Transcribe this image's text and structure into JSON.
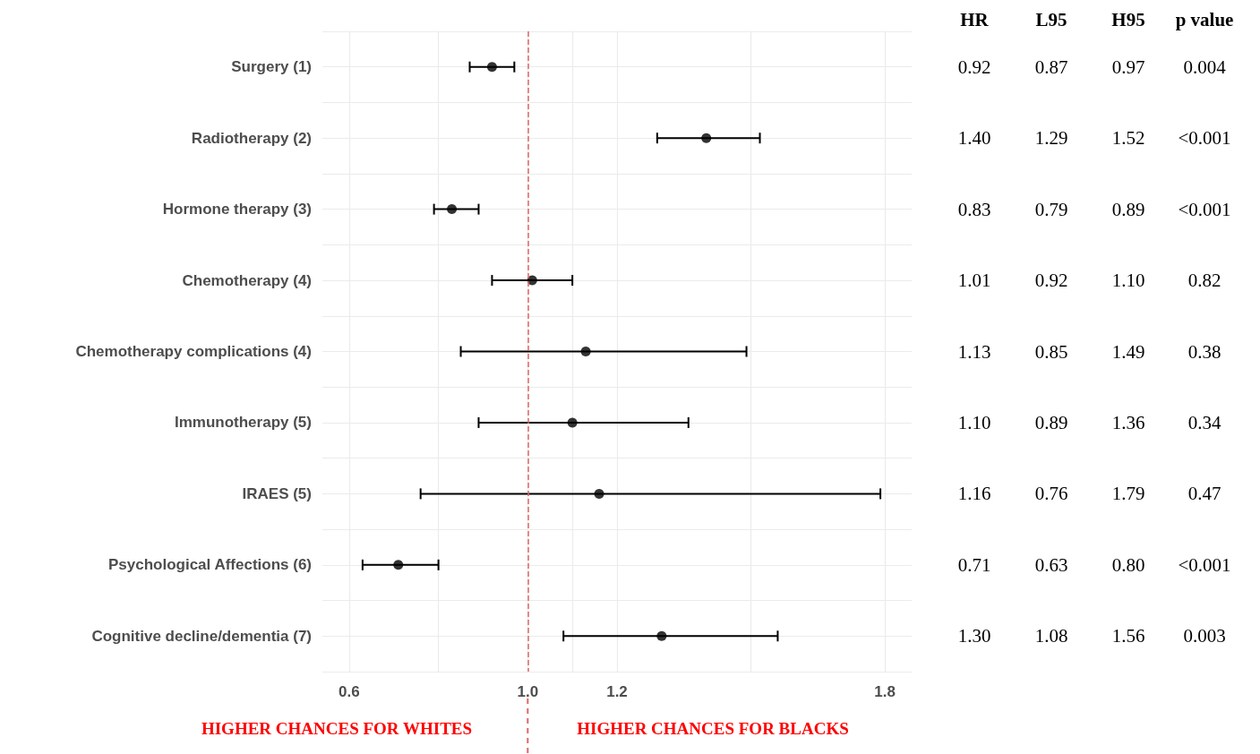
{
  "chart_data": {
    "type": "scatter",
    "categories": [
      "Surgery (1)",
      "Radiotherapy (2)",
      "Hormone therapy (3)",
      "Chemotherapy (4)",
      "Chemotherapy complications (4)",
      "Immunotherapy (5)",
      "IRAES (5)",
      "Psychological Affections (6)",
      "Cognitive decline/dementia (7)"
    ],
    "values": [
      0.92,
      1.4,
      0.83,
      1.01,
      1.13,
      1.1,
      1.16,
      0.71,
      1.3
    ],
    "errors": [
      [
        0.87,
        0.97
      ],
      [
        1.29,
        1.52
      ],
      [
        0.79,
        0.89
      ],
      [
        0.92,
        1.1
      ],
      [
        0.85,
        1.49
      ],
      [
        0.89,
        1.36
      ],
      [
        0.76,
        1.79
      ],
      [
        0.63,
        0.8
      ],
      [
        1.08,
        1.56
      ]
    ],
    "value_labels": [
      "0.92",
      "1.40",
      "0.83",
      "1.01",
      "1.13",
      "1.10",
      "1.16",
      "0.71",
      "1.30"
    ],
    "color": "#000000",
    "marker": "circle",
    "orientation": "horizontal",
    "xlim": [
      0.54,
      1.86
    ],
    "xticks": [
      0.6,
      {
        "value": 0.8,
        "label": null
      },
      {
        "value": 1.0,
        "label": "1.0"
      },
      {
        "value": 1.1,
        "label": null
      },
      1.2,
      {
        "value": 1.5,
        "label": null
      },
      1.8
    ],
    "grid": true,
    "ref_lines": [
      {
        "axis": "x",
        "value": 1.0,
        "color": "#e06666",
        "line_style": "dashed"
      }
    ],
    "annotations": [
      "HR",
      "L95",
      "H95",
      "p value",
      "0.87",
      "0.97",
      "0.004",
      "1.29",
      "1.52",
      "<0.001",
      "0.79",
      "0.89",
      "<0.001",
      "0.92",
      "1.10",
      "0.82",
      "0.85",
      "1.49",
      "0.38",
      "0.89",
      "1.36",
      "0.34",
      "0.76",
      "1.79",
      "0.47",
      "0.63",
      "0.80",
      "<0.001",
      "1.08",
      "1.56",
      "0.003",
      "HIGHER CHANCES FOR WHITES",
      "HIGHER CHANCES FOR BLACKS"
    ]
  }
}
